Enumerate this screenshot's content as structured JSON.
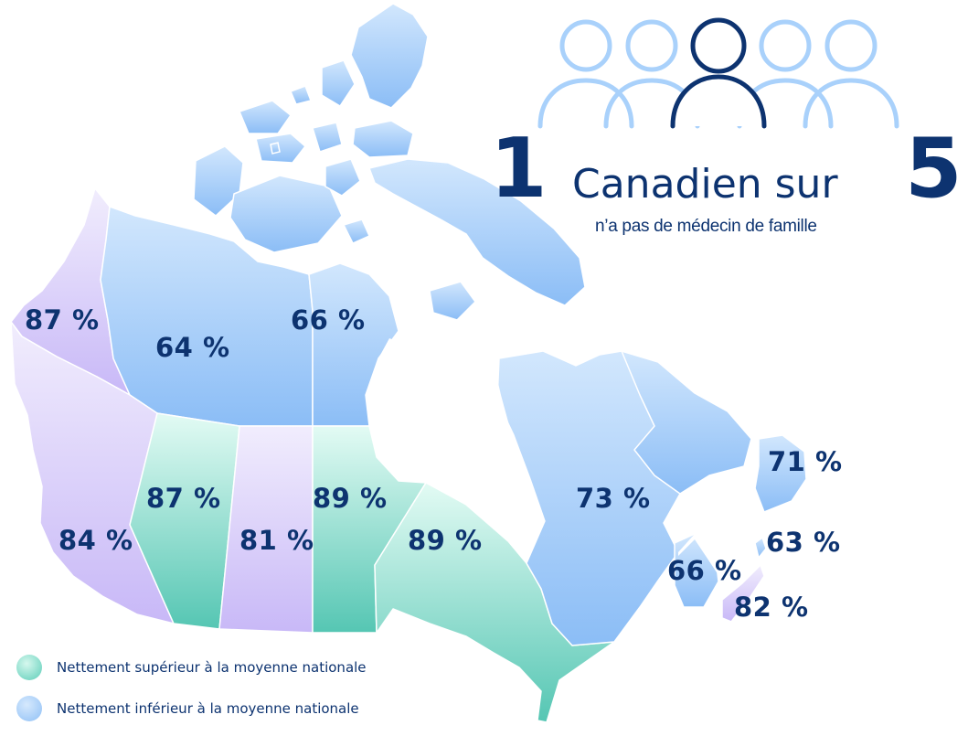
{
  "headline": {
    "number_left": "1",
    "text": "Canadien sur",
    "number_right": "5",
    "subtext": "n’a pas de médecin de famille"
  },
  "colors": {
    "above_average": "#5ccdb8",
    "below_average": "#8fc0f6",
    "near_average": "#cbbdf7",
    "label": "#0d3370"
  },
  "regions": {
    "yukon": "87 %",
    "northwest_territories": "64 %",
    "nunavut": "66 %",
    "british_columbia": "84 %",
    "alberta": "87 %",
    "saskatchewan": "81 %",
    "manitoba": "89 %",
    "ontario": "89 %",
    "quebec": "73 %",
    "newfoundland_labrador": "71 %",
    "new_brunswick": "66 %",
    "prince_edward_island": "63 %",
    "nova_scotia": "82 %"
  },
  "legend": [
    {
      "label": "Nettement supérieur à la moyenne nationale",
      "color": "#5ccdb8"
    },
    {
      "label": "Nettement inférieur à la moyenne nationale",
      "color": "#8fc0f6"
    }
  ]
}
